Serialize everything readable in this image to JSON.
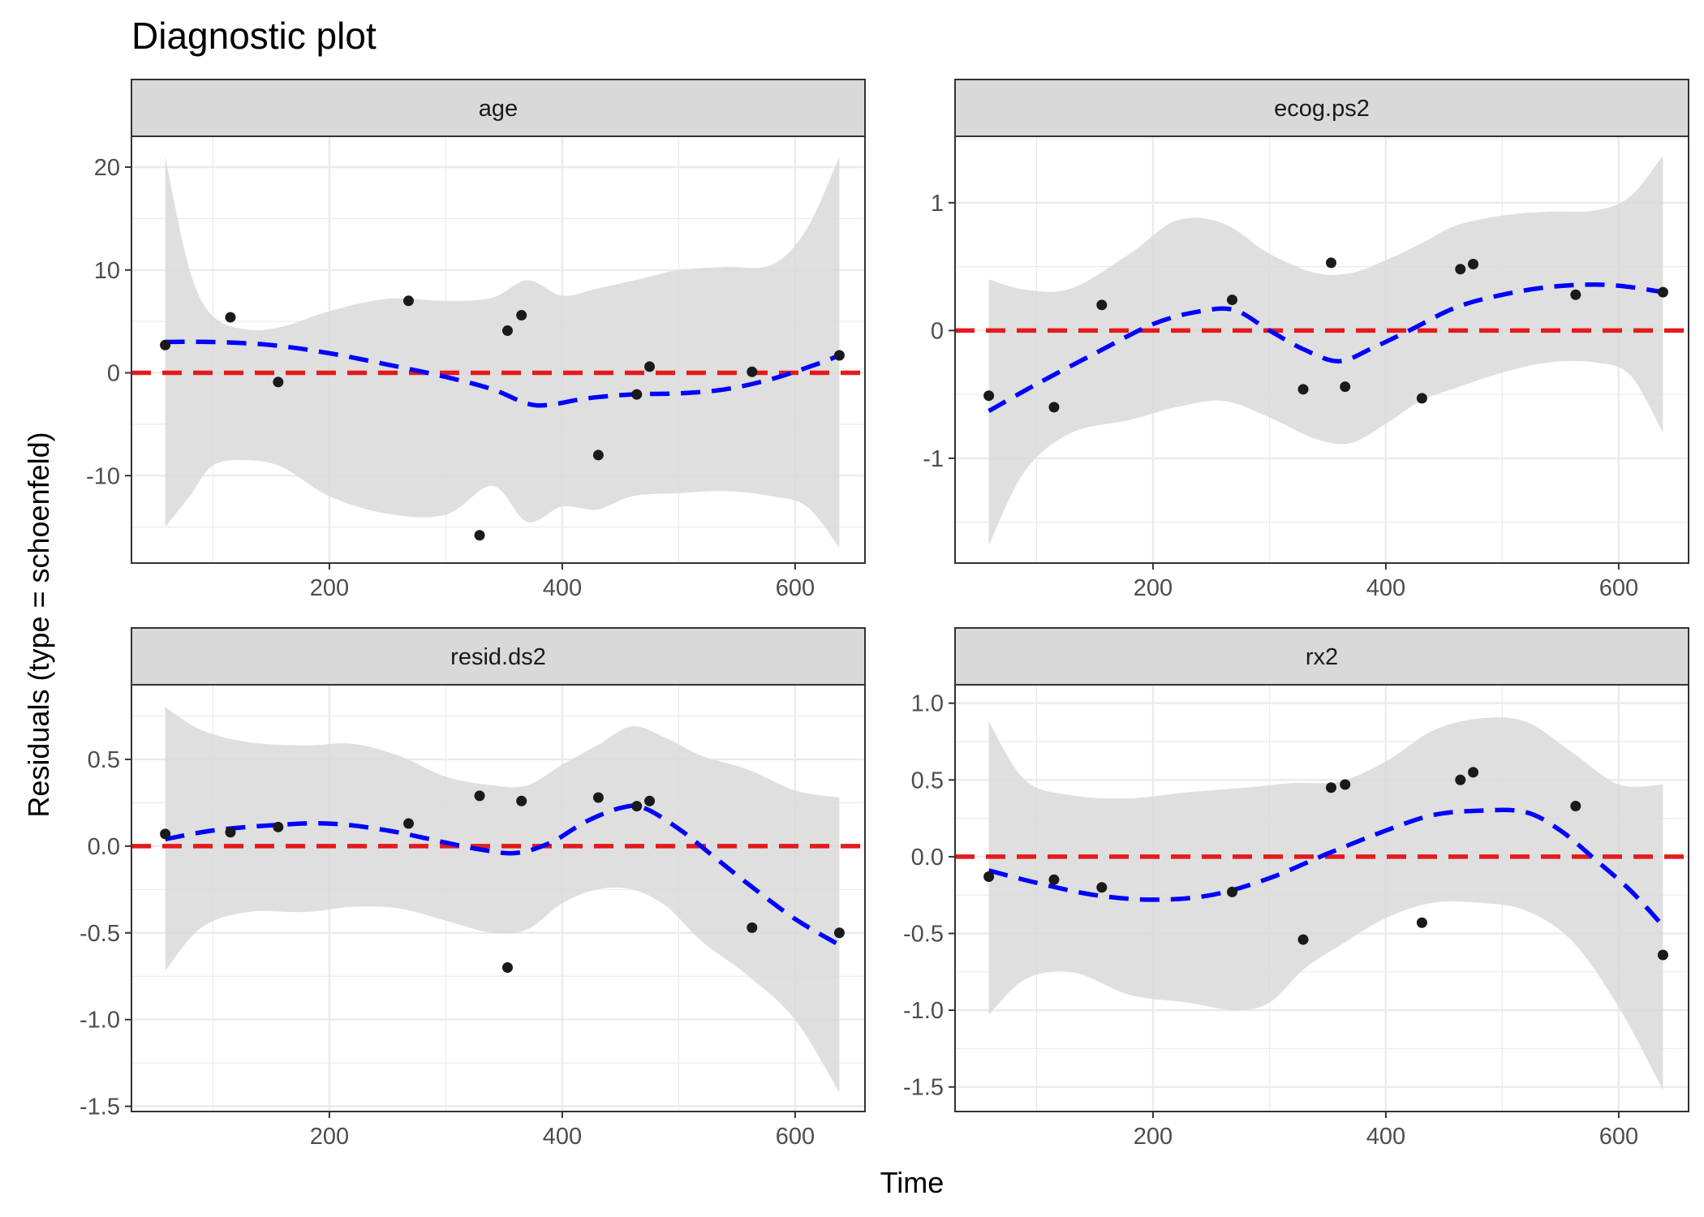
{
  "title": "Diagnostic plot",
  "xlabel": "Time",
  "ylabel": "Residuals (type = schoenfeld)",
  "colors": {
    "points": "#1a1a1a",
    "smooth_line": "#0000ff",
    "reference_line": "#e41a1c",
    "confidence_band": "#d9d9d9",
    "strip_fill": "#d9d9d9",
    "grid": "#ebebeb"
  },
  "chart_data": [
    {
      "type": "scatter",
      "title": "age",
      "xlim": [
        30,
        660
      ],
      "ylim": [
        -18.5,
        23
      ],
      "x_ticks": [
        200,
        400,
        600
      ],
      "y_ticks": [
        -10,
        0,
        10,
        20
      ],
      "y_tick_labels": [
        "-10",
        "0",
        "10",
        "20"
      ],
      "reference_y": 0,
      "points": [
        [
          59,
          2.7
        ],
        [
          115,
          5.4
        ],
        [
          156,
          -0.9
        ],
        [
          268,
          7
        ],
        [
          329,
          -15.8
        ],
        [
          353,
          4.1
        ],
        [
          365,
          5.6
        ],
        [
          431,
          -8
        ],
        [
          464,
          -2.1
        ],
        [
          475,
          0.6
        ],
        [
          563,
          0.1
        ],
        [
          638,
          1.7
        ]
      ],
      "smooth": [
        [
          59,
          3
        ],
        [
          100,
          3
        ],
        [
          150,
          2.7
        ],
        [
          200,
          1.9
        ],
        [
          250,
          0.8
        ],
        [
          300,
          -0.4
        ],
        [
          340,
          -1.6
        ],
        [
          370,
          -3
        ],
        [
          390,
          -3.1
        ],
        [
          420,
          -2.5
        ],
        [
          460,
          -2.1
        ],
        [
          500,
          -2
        ],
        [
          540,
          -1.6
        ],
        [
          580,
          -0.6
        ],
        [
          620,
          0.9
        ],
        [
          638,
          1.7
        ]
      ],
      "band_upper": [
        [
          59,
          21
        ],
        [
          80,
          10
        ],
        [
          100,
          5.5
        ],
        [
          130,
          4.2
        ],
        [
          160,
          4.5
        ],
        [
          200,
          6
        ],
        [
          250,
          7.2
        ],
        [
          300,
          7
        ],
        [
          340,
          7.3
        ],
        [
          370,
          9
        ],
        [
          400,
          7.5
        ],
        [
          430,
          8.2
        ],
        [
          470,
          9.2
        ],
        [
          500,
          10
        ],
        [
          540,
          10.3
        ],
        [
          580,
          10.5
        ],
        [
          610,
          14
        ],
        [
          638,
          21
        ]
      ],
      "band_lower": [
        [
          59,
          -15
        ],
        [
          80,
          -12
        ],
        [
          100,
          -9
        ],
        [
          130,
          -8.5
        ],
        [
          160,
          -9.2
        ],
        [
          200,
          -12
        ],
        [
          250,
          -13.7
        ],
        [
          300,
          -13.8
        ],
        [
          340,
          -11
        ],
        [
          370,
          -14.5
        ],
        [
          400,
          -13
        ],
        [
          430,
          -13.3
        ],
        [
          460,
          -12
        ],
        [
          500,
          -11.7
        ],
        [
          540,
          -11.5
        ],
        [
          580,
          -12
        ],
        [
          610,
          -13
        ],
        [
          638,
          -17
        ]
      ]
    },
    {
      "type": "scatter",
      "title": "ecog.ps2",
      "xlim": [
        30,
        660
      ],
      "ylim": [
        -1.82,
        1.52
      ],
      "x_ticks": [
        200,
        400,
        600
      ],
      "y_ticks": [
        -1,
        0,
        1
      ],
      "y_tick_labels": [
        "-1",
        "0",
        "1"
      ],
      "reference_y": 0,
      "points": [
        [
          59,
          -0.51
        ],
        [
          115,
          -0.6
        ],
        [
          156,
          0.2
        ],
        [
          268,
          0.24
        ],
        [
          329,
          -0.46
        ],
        [
          353,
          0.53
        ],
        [
          365,
          -0.44
        ],
        [
          431,
          -0.53
        ],
        [
          464,
          0.48
        ],
        [
          475,
          0.52
        ],
        [
          563,
          0.28
        ],
        [
          638,
          0.3
        ]
      ],
      "smooth": [
        [
          59,
          -0.63
        ],
        [
          100,
          -0.42
        ],
        [
          150,
          -0.18
        ],
        [
          200,
          0.05
        ],
        [
          240,
          0.15
        ],
        [
          270,
          0.16
        ],
        [
          300,
          0
        ],
        [
          330,
          -0.15
        ],
        [
          360,
          -0.24
        ],
        [
          390,
          -0.13
        ],
        [
          420,
          0
        ],
        [
          460,
          0.18
        ],
        [
          500,
          0.28
        ],
        [
          540,
          0.34
        ],
        [
          580,
          0.36
        ],
        [
          610,
          0.34
        ],
        [
          638,
          0.3
        ]
      ],
      "band_upper": [
        [
          59,
          0.4
        ],
        [
          90,
          0.32
        ],
        [
          130,
          0.33
        ],
        [
          180,
          0.6
        ],
        [
          220,
          0.86
        ],
        [
          260,
          0.84
        ],
        [
          300,
          0.6
        ],
        [
          340,
          0.45
        ],
        [
          370,
          0.45
        ],
        [
          400,
          0.55
        ],
        [
          430,
          0.68
        ],
        [
          460,
          0.82
        ],
        [
          500,
          0.9
        ],
        [
          540,
          0.93
        ],
        [
          580,
          0.94
        ],
        [
          610,
          1.05
        ],
        [
          638,
          1.37
        ]
      ],
      "band_lower": [
        [
          59,
          -1.68
        ],
        [
          90,
          -1.1
        ],
        [
          130,
          -0.8
        ],
        [
          180,
          -0.7
        ],
        [
          220,
          -0.6
        ],
        [
          260,
          -0.55
        ],
        [
          300,
          -0.68
        ],
        [
          340,
          -0.85
        ],
        [
          370,
          -0.88
        ],
        [
          400,
          -0.73
        ],
        [
          430,
          -0.55
        ],
        [
          460,
          -0.45
        ],
        [
          500,
          -0.33
        ],
        [
          540,
          -0.25
        ],
        [
          580,
          -0.25
        ],
        [
          610,
          -0.35
        ],
        [
          638,
          -0.8
        ]
      ]
    },
    {
      "type": "scatter",
      "title": "resid.ds2",
      "xlim": [
        30,
        660
      ],
      "ylim": [
        -1.53,
        0.93
      ],
      "x_ticks": [
        200,
        400,
        600
      ],
      "y_ticks": [
        -1.5,
        -1,
        -0.5,
        0,
        0.5
      ],
      "y_tick_labels": [
        "-1.5",
        "-1.0",
        "-0.5",
        "0.0",
        "0.5"
      ],
      "reference_y": 0,
      "points": [
        [
          59,
          0.07
        ],
        [
          115,
          0.08
        ],
        [
          156,
          0.11
        ],
        [
          268,
          0.13
        ],
        [
          329,
          0.29
        ],
        [
          353,
          -0.7
        ],
        [
          365,
          0.26
        ],
        [
          431,
          0.28
        ],
        [
          464,
          0.23
        ],
        [
          475,
          0.26
        ],
        [
          563,
          -0.47
        ],
        [
          638,
          -0.5
        ]
      ],
      "smooth": [
        [
          59,
          0.04
        ],
        [
          100,
          0.09
        ],
        [
          150,
          0.12
        ],
        [
          200,
          0.13
        ],
        [
          250,
          0.09
        ],
        [
          300,
          0.02
        ],
        [
          330,
          -0.02
        ],
        [
          360,
          -0.04
        ],
        [
          390,
          0.02
        ],
        [
          420,
          0.14
        ],
        [
          450,
          0.22
        ],
        [
          470,
          0.22
        ],
        [
          500,
          0.1
        ],
        [
          530,
          -0.06
        ],
        [
          560,
          -0.22
        ],
        [
          600,
          -0.42
        ],
        [
          638,
          -0.57
        ]
      ],
      "band_upper": [
        [
          59,
          0.8
        ],
        [
          90,
          0.67
        ],
        [
          130,
          0.6
        ],
        [
          180,
          0.58
        ],
        [
          220,
          0.59
        ],
        [
          260,
          0.52
        ],
        [
          300,
          0.4
        ],
        [
          340,
          0.35
        ],
        [
          370,
          0.35
        ],
        [
          400,
          0.47
        ],
        [
          430,
          0.58
        ],
        [
          460,
          0.69
        ],
        [
          490,
          0.62
        ],
        [
          520,
          0.52
        ],
        [
          560,
          0.44
        ],
        [
          600,
          0.32
        ],
        [
          638,
          0.28
        ]
      ],
      "band_lower": [
        [
          59,
          -0.72
        ],
        [
          90,
          -0.47
        ],
        [
          130,
          -0.38
        ],
        [
          180,
          -0.38
        ],
        [
          220,
          -0.35
        ],
        [
          260,
          -0.36
        ],
        [
          300,
          -0.43
        ],
        [
          340,
          -0.5
        ],
        [
          370,
          -0.48
        ],
        [
          400,
          -0.33
        ],
        [
          430,
          -0.25
        ],
        [
          460,
          -0.25
        ],
        [
          490,
          -0.35
        ],
        [
          520,
          -0.55
        ],
        [
          560,
          -0.75
        ],
        [
          600,
          -1.0
        ],
        [
          638,
          -1.42
        ]
      ]
    },
    {
      "type": "scatter",
      "title": "rx2",
      "xlim": [
        30,
        660
      ],
      "ylim": [
        -1.66,
        1.12
      ],
      "x_ticks": [
        200,
        400,
        600
      ],
      "y_ticks": [
        -1.5,
        -1,
        -0.5,
        0,
        0.5,
        1
      ],
      "y_tick_labels": [
        "-1.5",
        "-1.0",
        "-0.5",
        "0.0",
        "0.5",
        "1.0"
      ],
      "reference_y": 0,
      "points": [
        [
          59,
          -0.13
        ],
        [
          115,
          -0.15
        ],
        [
          156,
          -0.2
        ],
        [
          268,
          -0.23
        ],
        [
          329,
          -0.54
        ],
        [
          353,
          0.45
        ],
        [
          365,
          0.47
        ],
        [
          431,
          -0.43
        ],
        [
          464,
          0.5
        ],
        [
          475,
          0.55
        ],
        [
          563,
          0.33
        ],
        [
          638,
          -0.64
        ]
      ],
      "smooth": [
        [
          59,
          -0.09
        ],
        [
          100,
          -0.17
        ],
        [
          150,
          -0.25
        ],
        [
          200,
          -0.28
        ],
        [
          250,
          -0.25
        ],
        [
          300,
          -0.14
        ],
        [
          350,
          0.02
        ],
        [
          400,
          0.17
        ],
        [
          440,
          0.27
        ],
        [
          480,
          0.3
        ],
        [
          520,
          0.29
        ],
        [
          550,
          0.17
        ],
        [
          580,
          -0.02
        ],
        [
          610,
          -0.22
        ],
        [
          638,
          -0.45
        ]
      ],
      "band_upper": [
        [
          59,
          0.88
        ],
        [
          90,
          0.5
        ],
        [
          130,
          0.4
        ],
        [
          180,
          0.38
        ],
        [
          230,
          0.42
        ],
        [
          280,
          0.45
        ],
        [
          320,
          0.48
        ],
        [
          360,
          0.49
        ],
        [
          400,
          0.62
        ],
        [
          440,
          0.82
        ],
        [
          480,
          0.9
        ],
        [
          520,
          0.88
        ],
        [
          560,
          0.68
        ],
        [
          600,
          0.47
        ],
        [
          638,
          0.47
        ]
      ],
      "band_lower": [
        [
          59,
          -1.03
        ],
        [
          90,
          -0.8
        ],
        [
          130,
          -0.75
        ],
        [
          180,
          -0.9
        ],
        [
          230,
          -0.95
        ],
        [
          270,
          -1.0
        ],
        [
          300,
          -0.95
        ],
        [
          330,
          -0.73
        ],
        [
          360,
          -0.58
        ],
        [
          400,
          -0.4
        ],
        [
          440,
          -0.3
        ],
        [
          480,
          -0.3
        ],
        [
          520,
          -0.35
        ],
        [
          560,
          -0.55
        ],
        [
          600,
          -0.98
        ],
        [
          638,
          -1.52
        ]
      ]
    }
  ]
}
